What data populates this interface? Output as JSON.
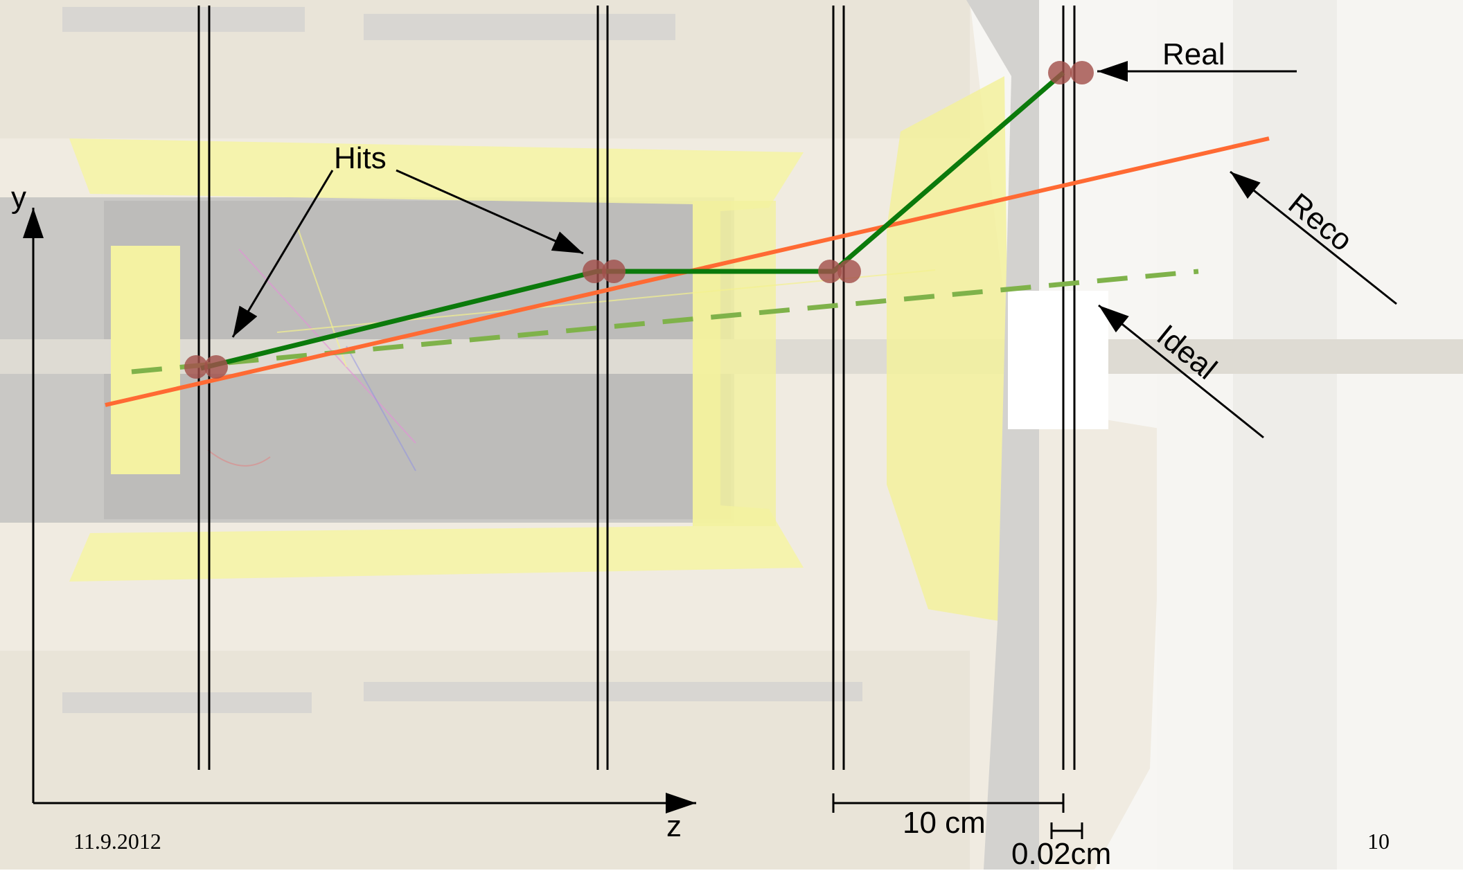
{
  "labels": {
    "hits": "Hits",
    "real": "Real",
    "reco": "Reco",
    "ideal": "Ideal",
    "y_axis": "y",
    "z_axis": "z",
    "scale_10cm": "10 cm",
    "scale_002cm": "0.02cm"
  },
  "footer": {
    "date": "11.9.2012",
    "page_number": "10"
  },
  "colors": {
    "real_track": "#0b7a0b",
    "reco_track": "#ff6a33",
    "ideal_track": "#7fb24a",
    "hit": "#a2504c",
    "detector_yellow": "#f7f5a6",
    "detector_gray": "#c9c8c4",
    "background": "#f1ece2"
  },
  "icons": {
    "axis_arrow": "arrow-head-icon",
    "hit_marker": "hit-dot-icon"
  }
}
